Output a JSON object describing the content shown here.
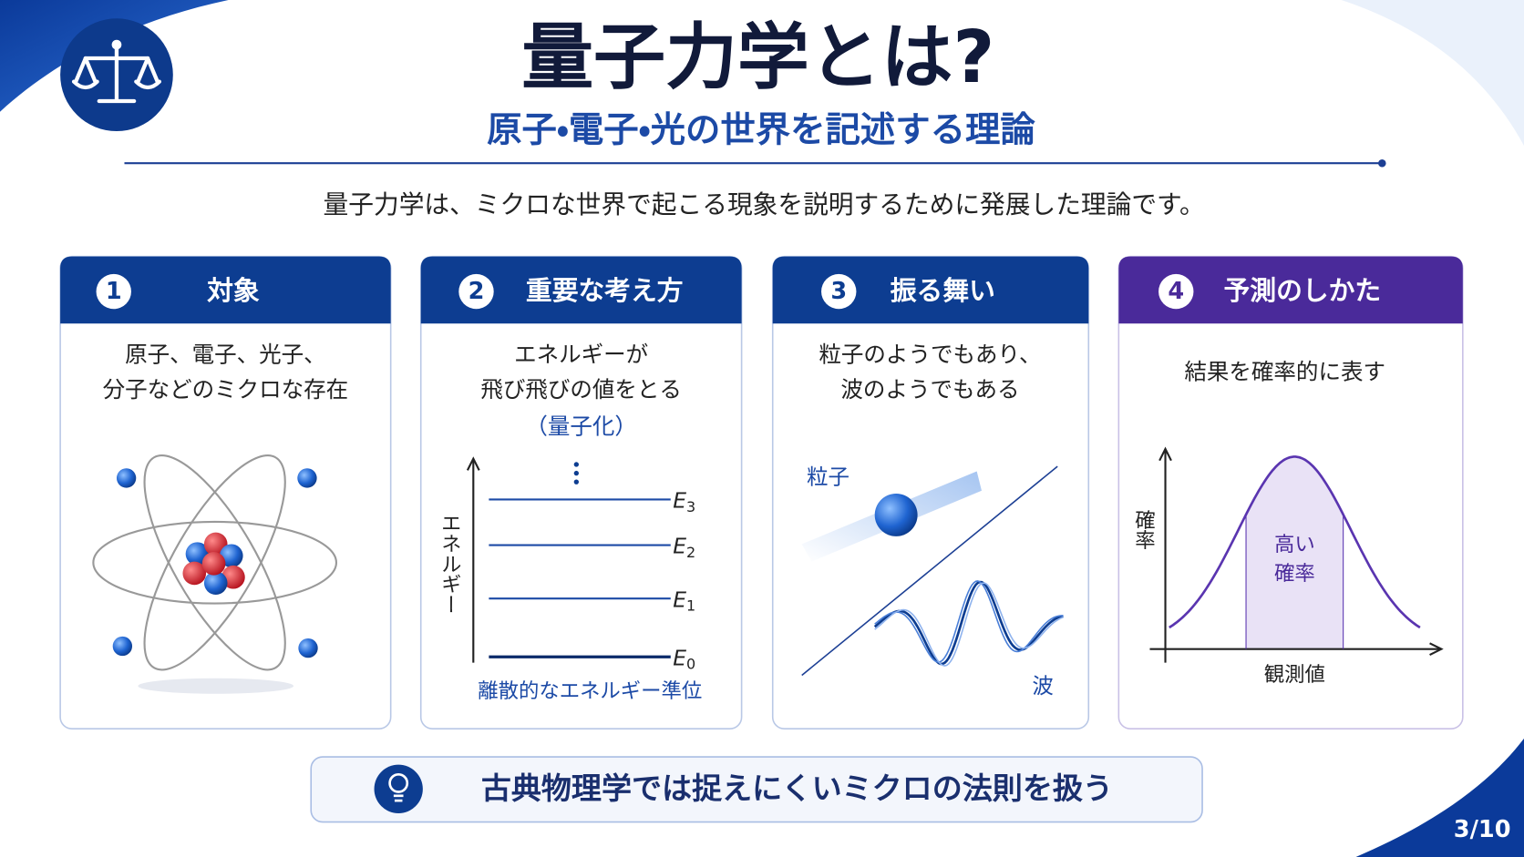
{
  "header": {
    "title": "量子力学とは?",
    "subtitle": "原子・電子・光の世界を記述する理論",
    "intro": "量子力学は、ミクロな世界で起こる現象を説明するために発展した理論です。"
  },
  "cards": [
    {
      "number": "1",
      "title": "対象",
      "lines": [
        "原子、電子、光子、",
        "分子などのミクロな存在"
      ]
    },
    {
      "number": "2",
      "title": "重要な考え方",
      "lines": [
        "エネルギーが",
        "飛び飛びの値をとる"
      ],
      "note": "（量子化）",
      "axis_label": "エネルギー",
      "levels": [
        {
          "symbol": "E",
          "index": "3"
        },
        {
          "symbol": "E",
          "index": "2"
        },
        {
          "symbol": "E",
          "index": "1"
        },
        {
          "symbol": "E",
          "index": "0"
        }
      ],
      "caption": "離散的なエネルギー準位"
    },
    {
      "number": "3",
      "title": "振る舞い",
      "lines": [
        "粒子のようでもあり、",
        "波のようでもある"
      ],
      "particle_label": "粒子",
      "wave_label": "波"
    },
    {
      "number": "4",
      "title": "予測のしかた",
      "lines": [
        "結果を確率的に表す"
      ],
      "y_label": "確率",
      "center_label": [
        "高い",
        "確率"
      ],
      "x_label": "観測値"
    }
  ],
  "footer": {
    "note": "古典物理学では捉えにくいミクロの法則を扱う",
    "page_number": "3/10"
  }
}
